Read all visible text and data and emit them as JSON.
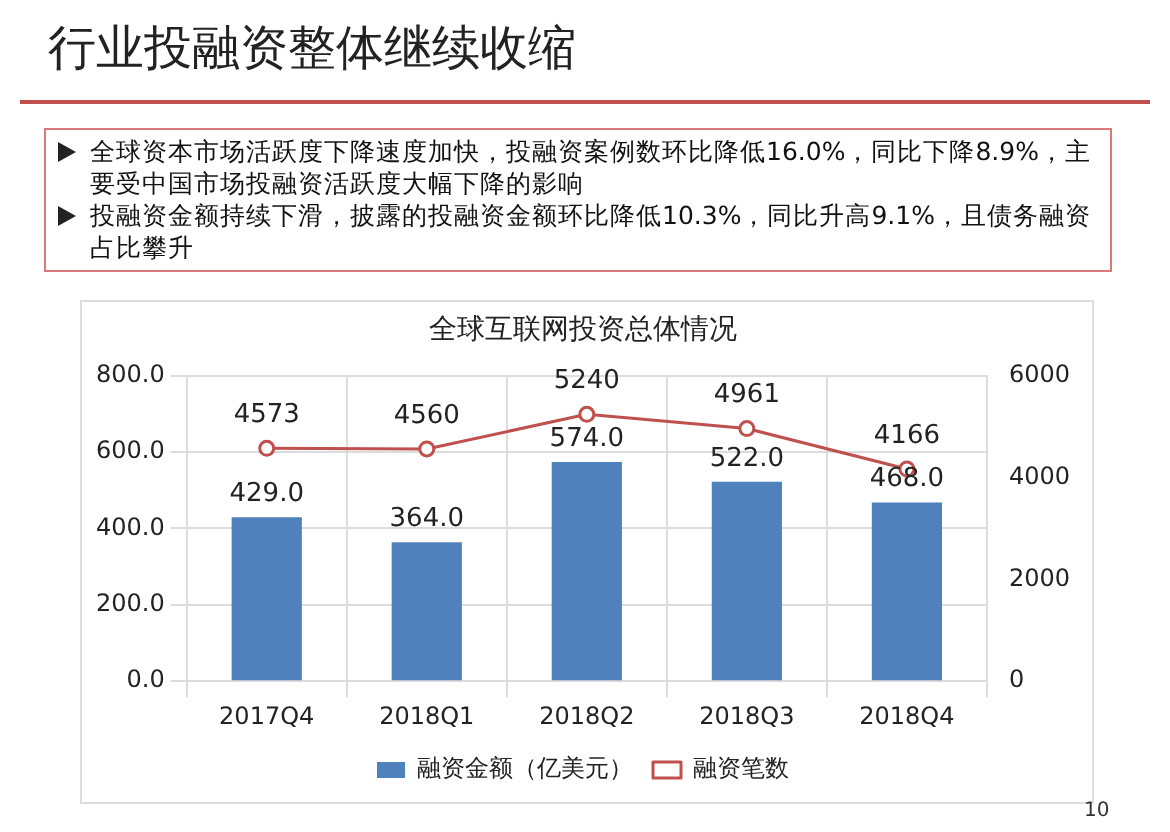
{
  "chart_data": {
    "type": "bar",
    "title": "行业投融资整体继续收缩",
    "subtitle": "全球互联网投资总体情况",
    "annotations": [
      "全球资本市场活跃度下降速度加快，投融资案例数环比降低16.0%，同比下降8.9%，主要受中国市场投融资活跃度大幅下降的影响",
      "投融资金额持续下滑，披露的投融资金额环比降低10.3%，同比升高9.1%，且债务融资占比攀升",
      "10"
    ],
    "categories": [
      "2017Q4",
      "2018Q1",
      "2018Q2",
      "2018Q3",
      "2018Q4"
    ],
    "series": [
      {
        "name": "融资金额（亿美元）",
        "color": "#4f81bd",
        "values": [
          429,
          364,
          574,
          522,
          468
        ],
        "value_labels": [
          "429.0",
          "364.0",
          "574.0",
          "522.0",
          "468.0"
        ]
      },
      {
        "name": "融资笔数",
        "type": "line",
        "axis": "y2",
        "color": "#c0504d",
        "values": [
          4573,
          4560,
          5240,
          4961,
          4166
        ],
        "value_labels": [
          "4573",
          "4560",
          "5240",
          "4961",
          "4166"
        ]
      }
    ],
    "ylim": [
      0,
      800
    ],
    "yticks": [
      {
        "value": 0,
        "label": "0.0"
      },
      {
        "value": 200,
        "label": "200.0"
      },
      {
        "value": 400,
        "label": "400.0"
      },
      {
        "value": 600,
        "label": "600.0"
      },
      {
        "value": 800,
        "label": "800.0"
      }
    ],
    "y2lim": [
      0,
      6000
    ],
    "y2ticks": [
      0,
      2000,
      4000,
      6000
    ],
    "grid": true,
    "legend": "bottom",
    "marker": "circle",
    "line_style": "solid"
  }
}
